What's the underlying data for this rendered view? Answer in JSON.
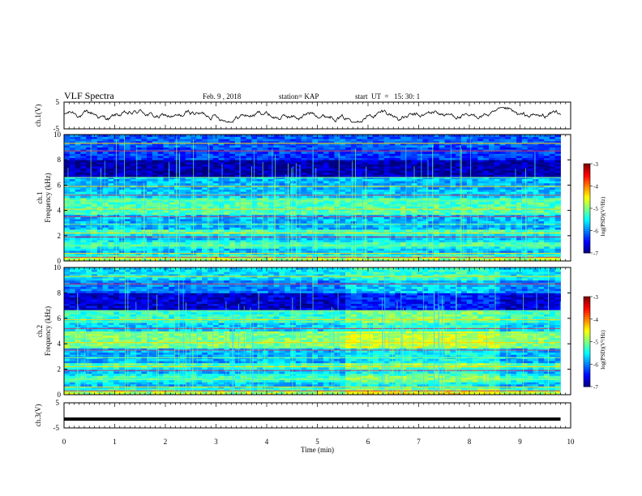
{
  "header": {
    "title": "VLF Spectra",
    "date": "Feb. 9 , 2018",
    "station": "station= KAP",
    "start": "start  UT  =   15: 30: 1"
  },
  "chart_data": [
    {
      "id": "ch1-waveform",
      "type": "line",
      "ylabel": "ch.1(V)",
      "xlim": [
        0,
        10
      ],
      "ylim": [
        -5,
        5
      ],
      "ytick_labels": [
        "5",
        "-5"
      ],
      "trace": "noisy signal roughly between -2 and 2.5 V, 0 to 9.8 min"
    },
    {
      "id": "ch1-spectrogram",
      "type": "heatmap",
      "ylabel": "ch.1\nFrequency (kHz)",
      "xlim": [
        0,
        10
      ],
      "ylim": [
        0,
        10
      ],
      "ytick_labels": [
        "0",
        "2",
        "4",
        "6",
        "8",
        "10"
      ],
      "colorbar": {
        "label": "log(PSD)(V²/Hz)",
        "range": [
          -7,
          -3
        ],
        "tick_labels": [
          "-3",
          "-4",
          "-5",
          "-6",
          "-7"
        ]
      }
    },
    {
      "id": "ch2-spectrogram",
      "type": "heatmap",
      "ylabel": "ch.2\nFrequency (kHz)",
      "xlim": [
        0,
        10
      ],
      "ylim": [
        0,
        10
      ],
      "ytick_labels": [
        "0",
        "2",
        "4",
        "6",
        "8",
        "10"
      ],
      "colorbar": {
        "label": "log(PSD)(V²/Hz)",
        "range": [
          -7,
          -3
        ],
        "tick_labels": [
          "-3",
          "-4",
          "-5",
          "-6",
          "-7"
        ]
      }
    },
    {
      "id": "ch3-waveform",
      "type": "line",
      "ylabel": "ch.3(V)",
      "xlim": [
        0,
        10
      ],
      "ylim": [
        -5,
        5
      ],
      "ytick_labels": [
        "5",
        "-5"
      ],
      "trace": "flat line near -1.5 V from 0 to 9.8 min"
    }
  ],
  "xaxis": {
    "label": "Time  (min)",
    "tick_labels": [
      "0",
      "1",
      "2",
      "3",
      "4",
      "5",
      "6",
      "7",
      "8",
      "9",
      "10"
    ]
  },
  "colors": {
    "colormap": [
      "#00007f",
      "#0000ff",
      "#007fff",
      "#00ffff",
      "#7fff7f",
      "#ffff00",
      "#ff7f00",
      "#ff0000",
      "#7f0000"
    ]
  }
}
